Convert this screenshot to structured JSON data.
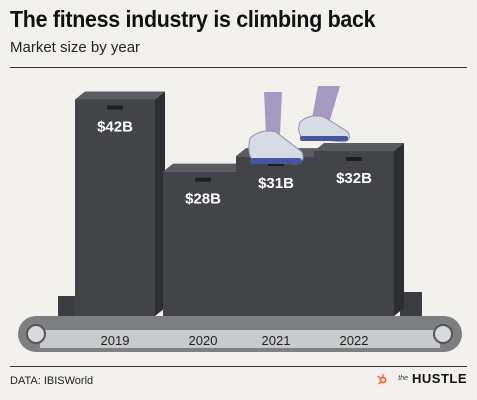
{
  "header": {
    "title": "The fitness industry is climbing back",
    "subtitle": "Market size by year"
  },
  "footer": {
    "source": "DATA: IBISWorld",
    "brand_prefix": "the",
    "brand_name": "HUSTLE"
  },
  "colors": {
    "box_front": "#424447",
    "box_side": "#2c2e31",
    "box_top": "#5a5c60",
    "belt": "#7d7f82",
    "belt_strip": "#c9cacb",
    "brand_accent": "#ff5c35"
  },
  "icons": [
    "sprocket-icon",
    "sneakers-illustration"
  ],
  "chart_data": {
    "type": "bar",
    "categories": [
      "2019",
      "2020",
      "2021",
      "2022"
    ],
    "values": [
      42,
      28,
      31,
      32
    ],
    "data_labels": [
      "$42B",
      "$28B",
      "$31B",
      "$32B"
    ],
    "title": "The fitness industry is climbing back",
    "subtitle": "Market size by year",
    "unit": "$B",
    "xlabel": "",
    "ylabel": "",
    "ylim": [
      0,
      45
    ],
    "grid": false,
    "legend": "none"
  }
}
